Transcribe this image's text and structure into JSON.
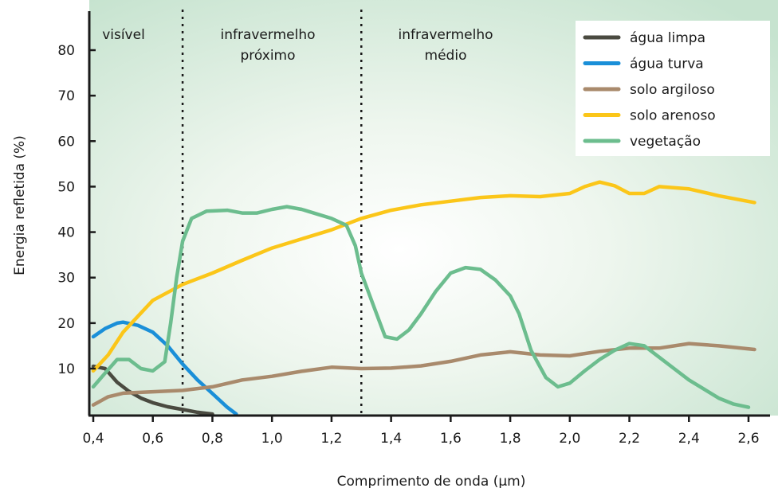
{
  "chart_data": {
    "type": "line",
    "title": "",
    "xlabel": "Comprimento de onda (μm)",
    "ylabel": "Energia refletida (%)",
    "xlim": [
      0.4,
      2.65
    ],
    "ylim": [
      0,
      90
    ],
    "x_ticks": [
      0.4,
      0.6,
      0.8,
      1.0,
      1.2,
      1.4,
      1.6,
      1.8,
      2.0,
      2.2,
      2.4,
      2.6
    ],
    "x_tick_labels": [
      "0,4",
      "0,6",
      "0,8",
      "1,0",
      "1,2",
      "1,4",
      "1,6",
      "1,8",
      "2,0",
      "2,2",
      "2,4",
      "2,6"
    ],
    "y_ticks": [
      10,
      20,
      30,
      40,
      50,
      60,
      70,
      80
    ],
    "y_tick_labels": [
      "10",
      "20",
      "30",
      "40",
      "50",
      "60",
      "70",
      "80"
    ],
    "grid": false,
    "legend_position": "top-right",
    "regions": [
      {
        "lines": [
          "visível"
        ],
        "from": 0.4,
        "to": 0.7
      },
      {
        "lines": [
          "infravermelho",
          "próximo"
        ],
        "from": 0.7,
        "to": 1.3
      },
      {
        "lines": [
          "infravermelho",
          "médio"
        ],
        "from": 1.3,
        "to": 2.65
      }
    ],
    "dividers": [
      0.7,
      1.3
    ],
    "series": [
      {
        "name": "água limpa",
        "color": "#4a4a40",
        "points": [
          [
            0.4,
            10.5
          ],
          [
            0.44,
            10
          ],
          [
            0.48,
            7
          ],
          [
            0.52,
            5
          ],
          [
            0.56,
            3.5
          ],
          [
            0.6,
            2.5
          ],
          [
            0.65,
            1.6
          ],
          [
            0.7,
            1
          ],
          [
            0.75,
            0.4
          ],
          [
            0.8,
            0
          ]
        ]
      },
      {
        "name": "água turva",
        "color": "#1a8fd8",
        "points": [
          [
            0.4,
            17
          ],
          [
            0.44,
            18.8
          ],
          [
            0.48,
            20
          ],
          [
            0.5,
            20.2
          ],
          [
            0.55,
            19.5
          ],
          [
            0.6,
            18
          ],
          [
            0.65,
            15
          ],
          [
            0.7,
            11
          ],
          [
            0.75,
            7.5
          ],
          [
            0.8,
            4.5
          ],
          [
            0.85,
            1.5
          ],
          [
            0.88,
            0
          ]
        ]
      },
      {
        "name": "solo argiloso",
        "color": "#a98a6c",
        "points": [
          [
            0.4,
            2
          ],
          [
            0.45,
            3.8
          ],
          [
            0.5,
            4.6
          ],
          [
            0.6,
            4.9
          ],
          [
            0.7,
            5.2
          ],
          [
            0.8,
            6
          ],
          [
            0.9,
            7.5
          ],
          [
            1.0,
            8.3
          ],
          [
            1.1,
            9.4
          ],
          [
            1.2,
            10.3
          ],
          [
            1.3,
            10
          ],
          [
            1.4,
            10.1
          ],
          [
            1.5,
            10.6
          ],
          [
            1.6,
            11.6
          ],
          [
            1.7,
            13
          ],
          [
            1.8,
            13.7
          ],
          [
            1.9,
            13
          ],
          [
            2.0,
            12.8
          ],
          [
            2.1,
            13.8
          ],
          [
            2.2,
            14.5
          ],
          [
            2.3,
            14.5
          ],
          [
            2.4,
            15.5
          ],
          [
            2.5,
            15
          ],
          [
            2.62,
            14.2
          ]
        ]
      },
      {
        "name": "solo arenoso",
        "color": "#fbc619",
        "points": [
          [
            0.4,
            9.5
          ],
          [
            0.45,
            13
          ],
          [
            0.5,
            18
          ],
          [
            0.55,
            21.5
          ],
          [
            0.6,
            25
          ],
          [
            0.7,
            28.5
          ],
          [
            0.8,
            31
          ],
          [
            0.9,
            33.8
          ],
          [
            1.0,
            36.5
          ],
          [
            1.1,
            38.5
          ],
          [
            1.2,
            40.5
          ],
          [
            1.3,
            43
          ],
          [
            1.4,
            44.8
          ],
          [
            1.5,
            46
          ],
          [
            1.6,
            46.8
          ],
          [
            1.7,
            47.6
          ],
          [
            1.8,
            48
          ],
          [
            1.9,
            47.8
          ],
          [
            2.0,
            48.5
          ],
          [
            2.05,
            50
          ],
          [
            2.1,
            51
          ],
          [
            2.15,
            50.2
          ],
          [
            2.2,
            48.5
          ],
          [
            2.25,
            48.5
          ],
          [
            2.3,
            50
          ],
          [
            2.4,
            49.5
          ],
          [
            2.5,
            48
          ],
          [
            2.62,
            46.5
          ]
        ]
      },
      {
        "name": "vegetação",
        "color": "#6cbd8e",
        "points": [
          [
            0.4,
            6
          ],
          [
            0.44,
            9
          ],
          [
            0.48,
            12
          ],
          [
            0.52,
            12
          ],
          [
            0.56,
            10
          ],
          [
            0.6,
            9.5
          ],
          [
            0.64,
            11.5
          ],
          [
            0.66,
            20
          ],
          [
            0.68,
            30
          ],
          [
            0.7,
            38
          ],
          [
            0.73,
            43
          ],
          [
            0.78,
            44.6
          ],
          [
            0.85,
            44.8
          ],
          [
            0.9,
            44.2
          ],
          [
            0.95,
            44.2
          ],
          [
            1.0,
            45
          ],
          [
            1.05,
            45.6
          ],
          [
            1.1,
            45
          ],
          [
            1.15,
            44
          ],
          [
            1.2,
            43
          ],
          [
            1.25,
            41.5
          ],
          [
            1.28,
            37
          ],
          [
            1.3,
            31
          ],
          [
            1.34,
            24
          ],
          [
            1.38,
            17
          ],
          [
            1.42,
            16.5
          ],
          [
            1.46,
            18.5
          ],
          [
            1.5,
            22
          ],
          [
            1.55,
            27
          ],
          [
            1.6,
            31
          ],
          [
            1.65,
            32.2
          ],
          [
            1.7,
            31.8
          ],
          [
            1.75,
            29.5
          ],
          [
            1.8,
            26
          ],
          [
            1.83,
            22
          ],
          [
            1.87,
            14
          ],
          [
            1.92,
            8
          ],
          [
            1.96,
            6
          ],
          [
            2.0,
            6.8
          ],
          [
            2.05,
            9.5
          ],
          [
            2.1,
            12
          ],
          [
            2.15,
            14
          ],
          [
            2.2,
            15.5
          ],
          [
            2.25,
            15
          ],
          [
            2.3,
            12.5
          ],
          [
            2.35,
            10
          ],
          [
            2.4,
            7.5
          ],
          [
            2.45,
            5.5
          ],
          [
            2.5,
            3.5
          ],
          [
            2.55,
            2.2
          ],
          [
            2.6,
            1.5
          ]
        ]
      }
    ]
  }
}
